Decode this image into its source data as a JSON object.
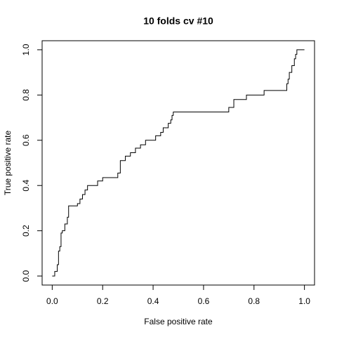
{
  "chart_data": {
    "type": "line",
    "title": "10 folds cv #10",
    "xlabel": "False positive rate",
    "ylabel": "True positive rate",
    "xlim": [
      -0.04,
      1.04
    ],
    "ylim": [
      -0.04,
      1.04
    ],
    "xticks": [
      {
        "value": 0,
        "label": "0.0"
      },
      0.2,
      0.4,
      0.6,
      0.8,
      {
        "value": 1,
        "label": "1.0"
      }
    ],
    "yticks": [
      {
        "value": 0,
        "label": "0.0"
      },
      0.2,
      0.4,
      0.6,
      0.8,
      {
        "value": 1,
        "label": "1.0"
      }
    ],
    "color": "#000000",
    "x": [
      0,
      0.01,
      0.01,
      0.02,
      0.02,
      0.025,
      0.025,
      0.03,
      0.03,
      0.035,
      0.035,
      0.04,
      0.04,
      0.05,
      0.05,
      0.06,
      0.06,
      0.065,
      0.065,
      0.1,
      0.1,
      0.11,
      0.11,
      0.12,
      0.12,
      0.13,
      0.13,
      0.14,
      0.14,
      0.18,
      0.18,
      0.2,
      0.2,
      0.26,
      0.26,
      0.27,
      0.27,
      0.29,
      0.29,
      0.31,
      0.31,
      0.33,
      0.33,
      0.35,
      0.35,
      0.37,
      0.37,
      0.41,
      0.41,
      0.43,
      0.43,
      0.44,
      0.44,
      0.46,
      0.46,
      0.47,
      0.47,
      0.475,
      0.475,
      0.48,
      0.48,
      0.7,
      0.7,
      0.72,
      0.72,
      0.77,
      0.77,
      0.84,
      0.84,
      0.93,
      0.93,
      0.935,
      0.935,
      0.94,
      0.94,
      0.95,
      0.95,
      0.96,
      0.96,
      0.965,
      0.965,
      0.97,
      0.97,
      1
    ],
    "y": [
      0,
      0,
      0.02,
      0.02,
      0.05,
      0.05,
      0.11,
      0.11,
      0.13,
      0.13,
      0.19,
      0.19,
      0.2,
      0.2,
      0.23,
      0.23,
      0.26,
      0.26,
      0.31,
      0.31,
      0.32,
      0.32,
      0.34,
      0.34,
      0.36,
      0.36,
      0.38,
      0.38,
      0.4,
      0.4,
      0.42,
      0.42,
      0.435,
      0.435,
      0.455,
      0.455,
      0.51,
      0.51,
      0.53,
      0.53,
      0.545,
      0.545,
      0.565,
      0.565,
      0.58,
      0.58,
      0.6,
      0.6,
      0.62,
      0.62,
      0.635,
      0.635,
      0.655,
      0.655,
      0.675,
      0.675,
      0.69,
      0.69,
      0.71,
      0.71,
      0.725,
      0.725,
      0.745,
      0.745,
      0.78,
      0.78,
      0.8,
      0.8,
      0.82,
      0.82,
      0.85,
      0.85,
      0.87,
      0.87,
      0.9,
      0.9,
      0.93,
      0.93,
      0.96,
      0.96,
      0.98,
      0.98,
      1,
      1
    ]
  }
}
